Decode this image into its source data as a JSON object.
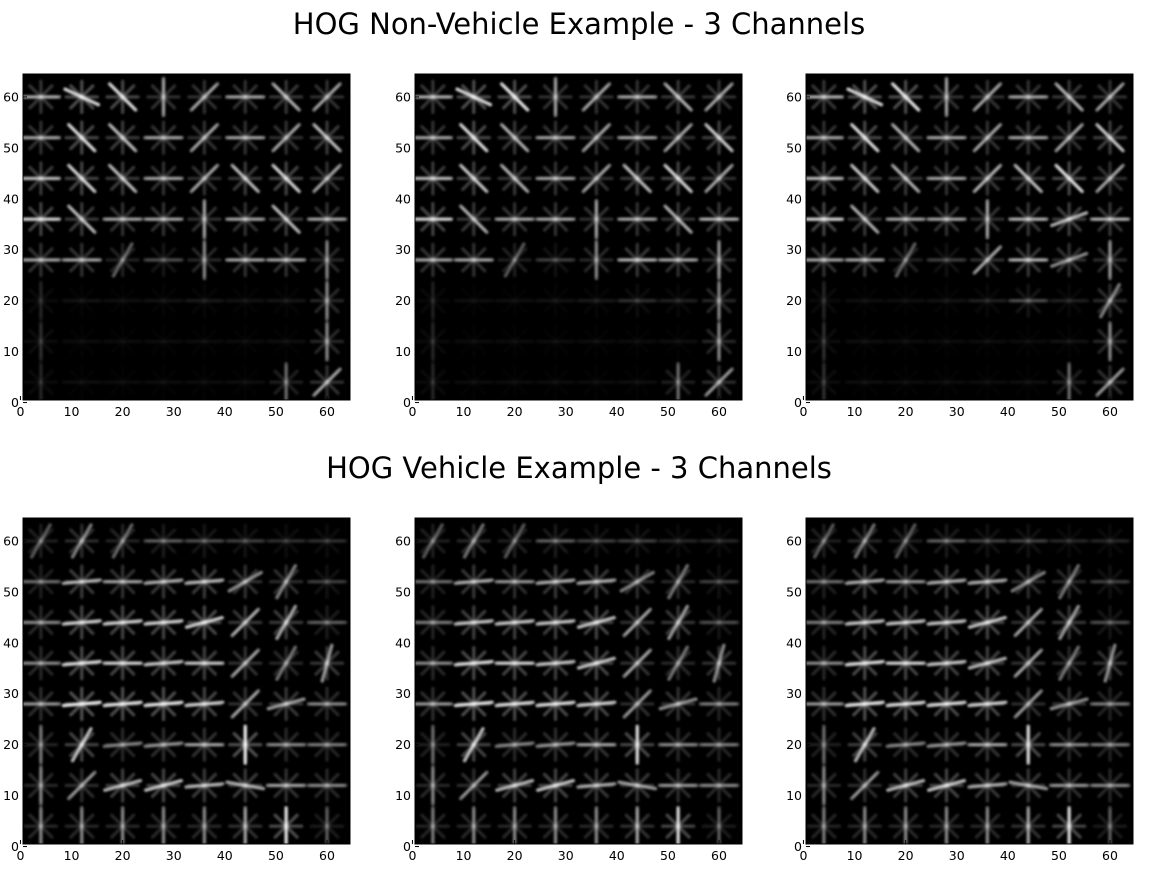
{
  "figure": {
    "sections": [
      {
        "title": "HOG Non-Vehicle Example - 3 Channels"
      },
      {
        "title": "HOG Vehicle Example - 3 Channels"
      }
    ]
  },
  "chart_data": [
    {
      "type": "heatmap",
      "section": 0,
      "channel": 1,
      "title": "",
      "xlabel": "",
      "ylabel": "",
      "xlim": [
        0,
        64
      ],
      "ylim": [
        64,
        0
      ],
      "cmap": "gray",
      "grid": false,
      "xticks": [
        0,
        10,
        20,
        30,
        40,
        50,
        60
      ],
      "yticks": [
        0,
        10,
        20,
        30,
        40,
        50,
        60
      ],
      "cells_per_side": 8,
      "cell_size": 8,
      "cell_magnitude": [
        [
          0.12,
          0.05,
          0.04,
          0.04,
          0.04,
          0.05,
          0.35,
          0.55
        ],
        [
          0.15,
          0.04,
          0.04,
          0.04,
          0.04,
          0.04,
          0.05,
          0.45
        ],
        [
          0.12,
          0.06,
          0.05,
          0.06,
          0.08,
          0.06,
          0.07,
          0.45
        ],
        [
          0.55,
          0.55,
          0.38,
          0.25,
          0.45,
          0.55,
          0.55,
          0.45
        ],
        [
          0.75,
          0.65,
          0.55,
          0.55,
          0.55,
          0.55,
          0.65,
          0.55
        ],
        [
          0.65,
          0.75,
          0.65,
          0.55,
          0.55,
          0.65,
          0.75,
          0.55
        ],
        [
          0.55,
          0.8,
          0.65,
          0.55,
          0.55,
          0.55,
          0.55,
          0.65
        ],
        [
          0.6,
          0.85,
          0.8,
          0.55,
          0.55,
          0.55,
          0.6,
          0.55
        ]
      ],
      "dominant_orientation_deg": [
        [
          90,
          0,
          0,
          0,
          0,
          0,
          90,
          45
        ],
        [
          90,
          0,
          0,
          0,
          0,
          0,
          0,
          90
        ],
        [
          90,
          0,
          0,
          0,
          0,
          0,
          0,
          90
        ],
        [
          0,
          0,
          60,
          0,
          90,
          0,
          0,
          90
        ],
        [
          0,
          135,
          0,
          0,
          90,
          0,
          135,
          0
        ],
        [
          0,
          135,
          135,
          0,
          45,
          135,
          135,
          45
        ],
        [
          0,
          135,
          135,
          0,
          45,
          0,
          45,
          135
        ],
        [
          0,
          155,
          135,
          90,
          45,
          0,
          135,
          45
        ]
      ]
    },
    {
      "type": "heatmap",
      "section": 0,
      "channel": 2,
      "title": "",
      "xlabel": "",
      "ylabel": "",
      "xlim": [
        0,
        64
      ],
      "ylim": [
        64,
        0
      ],
      "cmap": "gray",
      "grid": false,
      "xticks": [
        0,
        10,
        20,
        30,
        40,
        50,
        60
      ],
      "yticks": [
        0,
        10,
        20,
        30,
        40,
        50,
        60
      ],
      "cells_per_side": 8,
      "cell_size": 8,
      "cell_magnitude": [
        [
          0.12,
          0.04,
          0.04,
          0.04,
          0.04,
          0.05,
          0.35,
          0.5
        ],
        [
          0.12,
          0.04,
          0.04,
          0.04,
          0.04,
          0.04,
          0.05,
          0.45
        ],
        [
          0.1,
          0.05,
          0.05,
          0.06,
          0.08,
          0.15,
          0.1,
          0.45
        ],
        [
          0.55,
          0.55,
          0.35,
          0.2,
          0.45,
          0.6,
          0.55,
          0.5
        ],
        [
          0.75,
          0.6,
          0.55,
          0.55,
          0.55,
          0.55,
          0.6,
          0.6
        ],
        [
          0.65,
          0.7,
          0.6,
          0.55,
          0.55,
          0.65,
          0.75,
          0.55
        ],
        [
          0.55,
          0.8,
          0.6,
          0.55,
          0.55,
          0.55,
          0.55,
          0.7
        ],
        [
          0.6,
          0.85,
          0.85,
          0.55,
          0.55,
          0.55,
          0.6,
          0.55
        ]
      ],
      "dominant_orientation_deg": [
        [
          90,
          0,
          0,
          0,
          0,
          0,
          90,
          45
        ],
        [
          90,
          0,
          0,
          0,
          0,
          0,
          0,
          90
        ],
        [
          90,
          0,
          0,
          0,
          0,
          0,
          0,
          90
        ],
        [
          0,
          0,
          60,
          0,
          90,
          0,
          0,
          90
        ],
        [
          0,
          135,
          0,
          0,
          90,
          0,
          135,
          0
        ],
        [
          0,
          135,
          135,
          0,
          45,
          135,
          135,
          45
        ],
        [
          0,
          135,
          135,
          0,
          45,
          0,
          45,
          135
        ],
        [
          0,
          155,
          135,
          90,
          45,
          0,
          135,
          45
        ]
      ]
    },
    {
      "type": "heatmap",
      "section": 0,
      "channel": 3,
      "title": "",
      "xlabel": "",
      "ylabel": "",
      "xlim": [
        0,
        64
      ],
      "ylim": [
        64,
        0
      ],
      "cmap": "gray",
      "grid": false,
      "xticks": [
        0,
        10,
        20,
        30,
        40,
        50,
        60
      ],
      "yticks": [
        0,
        10,
        20,
        30,
        40,
        50,
        60
      ],
      "cells_per_side": 8,
      "cell_size": 8,
      "cell_magnitude": [
        [
          0.15,
          0.05,
          0.04,
          0.04,
          0.04,
          0.05,
          0.35,
          0.5
        ],
        [
          0.15,
          0.05,
          0.04,
          0.04,
          0.04,
          0.04,
          0.06,
          0.45
        ],
        [
          0.12,
          0.05,
          0.05,
          0.06,
          0.1,
          0.25,
          0.1,
          0.5
        ],
        [
          0.55,
          0.55,
          0.38,
          0.2,
          0.55,
          0.6,
          0.55,
          0.5
        ],
        [
          0.75,
          0.6,
          0.55,
          0.55,
          0.55,
          0.6,
          0.7,
          0.6
        ],
        [
          0.65,
          0.7,
          0.6,
          0.55,
          0.6,
          0.65,
          0.8,
          0.55
        ],
        [
          0.55,
          0.8,
          0.6,
          0.55,
          0.55,
          0.55,
          0.55,
          0.7
        ],
        [
          0.6,
          0.85,
          0.85,
          0.55,
          0.55,
          0.55,
          0.6,
          0.55
        ]
      ],
      "dominant_orientation_deg": [
        [
          90,
          0,
          0,
          0,
          0,
          0,
          90,
          45
        ],
        [
          90,
          0,
          0,
          0,
          0,
          0,
          0,
          90
        ],
        [
          90,
          0,
          0,
          0,
          0,
          0,
          0,
          60
        ],
        [
          0,
          0,
          60,
          0,
          45,
          0,
          20,
          90
        ],
        [
          0,
          135,
          0,
          0,
          90,
          0,
          20,
          0
        ],
        [
          0,
          135,
          135,
          0,
          45,
          135,
          135,
          45
        ],
        [
          0,
          135,
          135,
          0,
          45,
          0,
          45,
          135
        ],
        [
          0,
          155,
          135,
          90,
          45,
          0,
          135,
          45
        ]
      ]
    },
    {
      "type": "heatmap",
      "section": 1,
      "channel": 1,
      "title": "",
      "xlabel": "",
      "ylabel": "",
      "xlim": [
        0,
        64
      ],
      "ylim": [
        64,
        0
      ],
      "cmap": "gray",
      "grid": false,
      "xticks": [
        0,
        10,
        20,
        30,
        40,
        50,
        60
      ],
      "yticks": [
        0,
        10,
        20,
        30,
        40,
        50,
        60
      ],
      "cells_per_side": 8,
      "cell_size": 8,
      "cell_magnitude": [
        [
          0.45,
          0.45,
          0.45,
          0.45,
          0.45,
          0.55,
          0.85,
          0.3
        ],
        [
          0.45,
          0.5,
          0.7,
          0.75,
          0.65,
          0.65,
          0.55,
          0.45
        ],
        [
          0.4,
          0.75,
          0.45,
          0.5,
          0.55,
          0.9,
          0.45,
          0.4
        ],
        [
          0.5,
          0.9,
          0.85,
          0.85,
          0.75,
          0.55,
          0.6,
          0.45
        ],
        [
          0.45,
          0.8,
          0.75,
          0.7,
          0.7,
          0.55,
          0.45,
          0.6
        ],
        [
          0.45,
          0.75,
          0.75,
          0.75,
          0.8,
          0.6,
          0.65,
          0.3
        ],
        [
          0.35,
          0.65,
          0.55,
          0.6,
          0.65,
          0.55,
          0.5,
          0.2
        ],
        [
          0.35,
          0.5,
          0.4,
          0.3,
          0.25,
          0.2,
          0.15,
          0.15
        ]
      ],
      "dominant_orientation_deg": [
        [
          90,
          90,
          90,
          90,
          90,
          90,
          90,
          90
        ],
        [
          90,
          45,
          15,
          15,
          5,
          170,
          0,
          0
        ],
        [
          90,
          60,
          5,
          5,
          0,
          90,
          0,
          0
        ],
        [
          0,
          5,
          5,
          5,
          5,
          45,
          15,
          0
        ],
        [
          0,
          5,
          0,
          5,
          0,
          45,
          60,
          75
        ],
        [
          0,
          5,
          5,
          5,
          15,
          45,
          60,
          0
        ],
        [
          0,
          5,
          0,
          5,
          5,
          30,
          60,
          0
        ],
        [
          60,
          60,
          60,
          0,
          0,
          0,
          0,
          0
        ]
      ]
    },
    {
      "type": "heatmap",
      "section": 1,
      "channel": 2,
      "title": "",
      "xlabel": "",
      "ylabel": "",
      "xlim": [
        0,
        64
      ],
      "ylim": [
        64,
        0
      ],
      "cmap": "gray",
      "grid": false,
      "xticks": [
        0,
        10,
        20,
        30,
        40,
        50,
        60
      ],
      "yticks": [
        0,
        10,
        20,
        30,
        40,
        50,
        60
      ],
      "cells_per_side": 8,
      "cell_size": 8,
      "cell_magnitude": [
        [
          0.4,
          0.45,
          0.45,
          0.45,
          0.45,
          0.55,
          0.8,
          0.3
        ],
        [
          0.45,
          0.5,
          0.7,
          0.75,
          0.6,
          0.6,
          0.5,
          0.45
        ],
        [
          0.35,
          0.75,
          0.45,
          0.5,
          0.55,
          0.8,
          0.45,
          0.4
        ],
        [
          0.5,
          0.85,
          0.8,
          0.8,
          0.75,
          0.5,
          0.55,
          0.4
        ],
        [
          0.45,
          0.8,
          0.75,
          0.7,
          0.75,
          0.55,
          0.45,
          0.55
        ],
        [
          0.4,
          0.7,
          0.7,
          0.7,
          0.75,
          0.55,
          0.6,
          0.25
        ],
        [
          0.35,
          0.6,
          0.5,
          0.6,
          0.6,
          0.5,
          0.45,
          0.2
        ],
        [
          0.35,
          0.45,
          0.35,
          0.3,
          0.2,
          0.2,
          0.12,
          0.12
        ]
      ],
      "dominant_orientation_deg": [
        [
          90,
          90,
          90,
          90,
          90,
          90,
          90,
          90
        ],
        [
          90,
          45,
          15,
          15,
          5,
          170,
          0,
          0
        ],
        [
          90,
          60,
          5,
          5,
          0,
          90,
          0,
          0
        ],
        [
          0,
          5,
          5,
          5,
          5,
          45,
          15,
          0
        ],
        [
          0,
          5,
          0,
          5,
          15,
          45,
          60,
          75
        ],
        [
          0,
          5,
          5,
          5,
          15,
          45,
          60,
          0
        ],
        [
          0,
          5,
          0,
          5,
          5,
          30,
          60,
          0
        ],
        [
          60,
          60,
          60,
          0,
          0,
          0,
          0,
          0
        ]
      ]
    },
    {
      "type": "heatmap",
      "section": 1,
      "channel": 3,
      "title": "",
      "xlabel": "",
      "ylabel": "",
      "xlim": [
        0,
        64
      ],
      "ylim": [
        64,
        0
      ],
      "cmap": "gray",
      "grid": false,
      "xticks": [
        0,
        10,
        20,
        30,
        40,
        50,
        60
      ],
      "yticks": [
        0,
        10,
        20,
        30,
        40,
        50,
        60
      ],
      "cells_per_side": 8,
      "cell_size": 8,
      "cell_magnitude": [
        [
          0.4,
          0.45,
          0.45,
          0.45,
          0.45,
          0.55,
          0.8,
          0.3
        ],
        [
          0.45,
          0.5,
          0.7,
          0.75,
          0.6,
          0.6,
          0.5,
          0.45
        ],
        [
          0.35,
          0.7,
          0.45,
          0.5,
          0.55,
          0.8,
          0.45,
          0.4
        ],
        [
          0.5,
          0.85,
          0.8,
          0.8,
          0.75,
          0.5,
          0.55,
          0.4
        ],
        [
          0.45,
          0.8,
          0.75,
          0.7,
          0.7,
          0.55,
          0.45,
          0.55
        ],
        [
          0.4,
          0.7,
          0.7,
          0.7,
          0.75,
          0.55,
          0.6,
          0.25
        ],
        [
          0.35,
          0.6,
          0.5,
          0.6,
          0.6,
          0.5,
          0.45,
          0.2
        ],
        [
          0.35,
          0.45,
          0.35,
          0.3,
          0.2,
          0.2,
          0.12,
          0.12
        ]
      ],
      "dominant_orientation_deg": [
        [
          90,
          90,
          90,
          90,
          90,
          90,
          90,
          90
        ],
        [
          90,
          45,
          15,
          15,
          5,
          170,
          0,
          0
        ],
        [
          90,
          60,
          5,
          5,
          0,
          90,
          0,
          0
        ],
        [
          0,
          5,
          5,
          5,
          5,
          45,
          15,
          0
        ],
        [
          0,
          5,
          0,
          5,
          15,
          45,
          60,
          75
        ],
        [
          0,
          5,
          5,
          5,
          15,
          45,
          60,
          0
        ],
        [
          0,
          5,
          0,
          5,
          5,
          30,
          60,
          0
        ],
        [
          60,
          60,
          60,
          0,
          0,
          0,
          0,
          0
        ]
      ]
    }
  ]
}
